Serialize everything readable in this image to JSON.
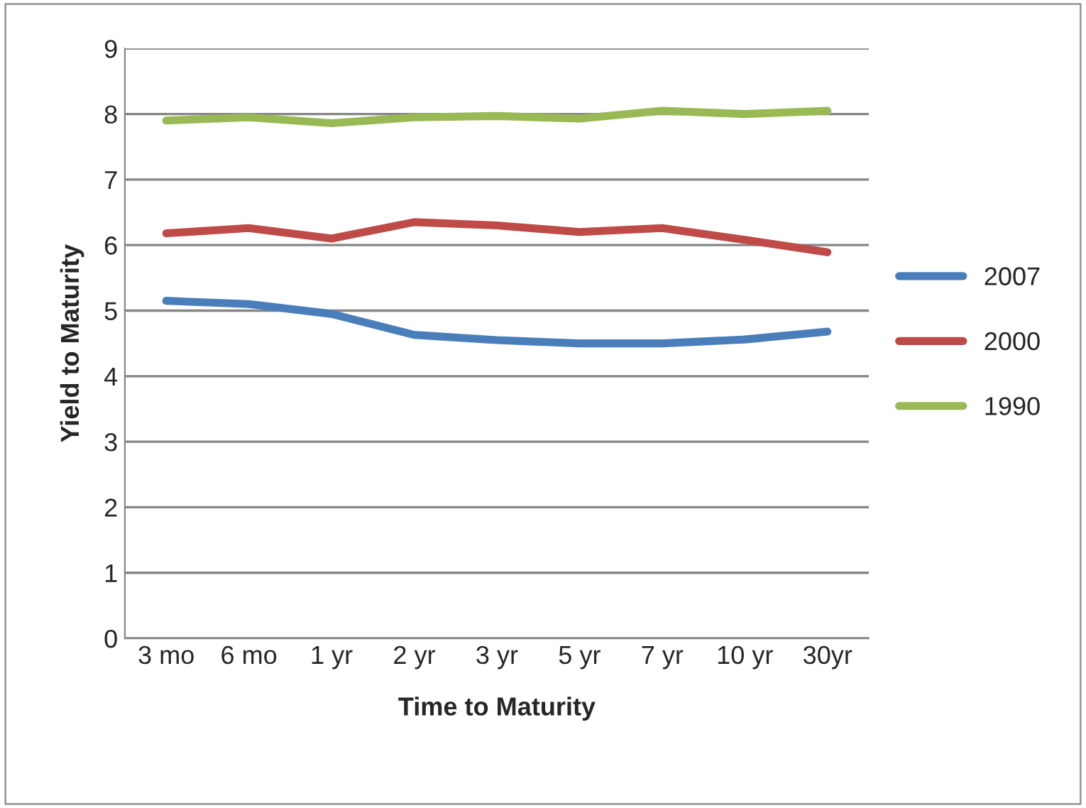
{
  "chart_data": {
    "type": "line",
    "xlabel": "Time to Maturity",
    "ylabel": "Yield to Maturity",
    "categories": [
      "3 mo",
      "6 mo",
      "1 yr",
      "2 yr",
      "3 yr",
      "5 yr",
      "7 yr",
      "10 yr",
      "30yr"
    ],
    "series": [
      {
        "name": "2007",
        "color": "#4a7ebb",
        "values": [
          5.15,
          5.1,
          4.95,
          4.63,
          4.55,
          4.5,
          4.5,
          4.56,
          4.68
        ]
      },
      {
        "name": "2000",
        "color": "#be4b48",
        "values": [
          6.18,
          6.26,
          6.1,
          6.35,
          6.3,
          6.2,
          6.26,
          6.08,
          5.89
        ]
      },
      {
        "name": "1990",
        "color": "#98b954",
        "values": [
          7.9,
          7.95,
          7.86,
          7.95,
          7.97,
          7.93,
          8.05,
          8.0,
          8.05
        ]
      }
    ],
    "ylim": [
      0,
      9
    ],
    "yticks": [
      0,
      1,
      2,
      3,
      4,
      5,
      6,
      7,
      8,
      9
    ],
    "grid": "y",
    "legend": "right",
    "marker": "none",
    "line_style": "solid"
  }
}
